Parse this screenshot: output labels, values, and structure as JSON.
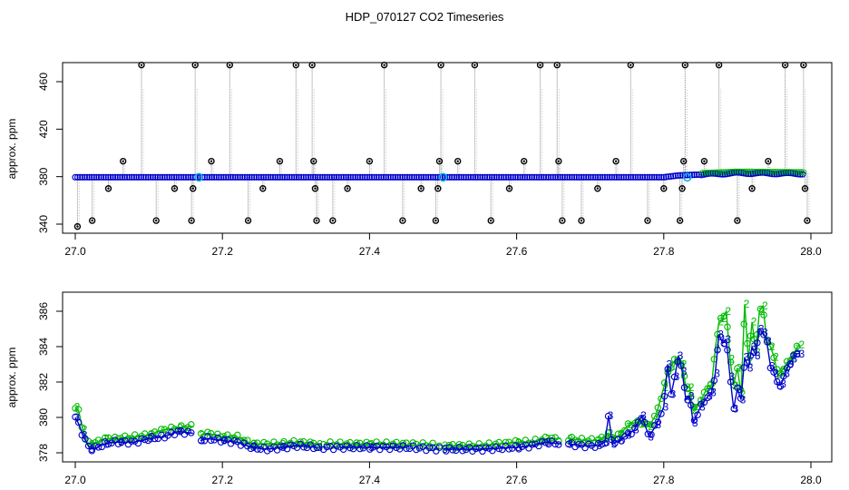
{
  "title": "HDP_070127  CO2 Timeseries",
  "colors": {
    "blue": "#0000cc",
    "green": "#00bb00",
    "cyan": "#00b8e0",
    "black": "#000000",
    "gray": "#888888"
  },
  "chart_data": [
    {
      "type": "scatter",
      "title": "HDP_070127  CO2 Timeseries",
      "xlabel": "",
      "ylabel": "approx. ppm",
      "xlim": [
        27.0,
        28.0
      ],
      "ylim": [
        338,
        478
      ],
      "xticks": [
        "27.0",
        "27.2",
        "27.4",
        "27.6",
        "27.8",
        "28.0"
      ],
      "yticks": [
        "340",
        "380",
        "420",
        "460"
      ],
      "xtick_values": [
        27.0,
        27.2,
        27.4,
        27.6,
        27.8,
        28.0
      ],
      "ytick_values": [
        340,
        380,
        420,
        460
      ],
      "grid": false,
      "baseline": [
        [
          27.0,
          379.5
        ],
        [
          27.8,
          379.5
        ],
        [
          27.82,
          381
        ],
        [
          27.86,
          382
        ],
        [
          27.9,
          383
        ],
        [
          27.99,
          382.5
        ]
      ],
      "spikes": [
        {
          "x": 27.003,
          "y": 338
        },
        {
          "x": 27.023,
          "y": 343
        },
        {
          "x": 27.045,
          "y": 370
        },
        {
          "x": 27.065,
          "y": 393
        },
        {
          "x": 27.09,
          "y": 474
        },
        {
          "x": 27.11,
          "y": 343
        },
        {
          "x": 27.135,
          "y": 370
        },
        {
          "x": 27.158,
          "y": 343
        },
        {
          "x": 27.16,
          "y": 370
        },
        {
          "x": 27.163,
          "y": 474
        },
        {
          "x": 27.185,
          "y": 393
        },
        {
          "x": 27.21,
          "y": 474
        },
        {
          "x": 27.235,
          "y": 343
        },
        {
          "x": 27.255,
          "y": 370
        },
        {
          "x": 27.278,
          "y": 393
        },
        {
          "x": 27.3,
          "y": 474
        },
        {
          "x": 27.322,
          "y": 474
        },
        {
          "x": 27.324,
          "y": 393
        },
        {
          "x": 27.326,
          "y": 370
        },
        {
          "x": 27.328,
          "y": 343
        },
        {
          "x": 27.35,
          "y": 343
        },
        {
          "x": 27.37,
          "y": 370
        },
        {
          "x": 27.4,
          "y": 393
        },
        {
          "x": 27.42,
          "y": 474
        },
        {
          "x": 27.445,
          "y": 343
        },
        {
          "x": 27.47,
          "y": 370
        },
        {
          "x": 27.49,
          "y": 343
        },
        {
          "x": 27.493,
          "y": 370
        },
        {
          "x": 27.495,
          "y": 393
        },
        {
          "x": 27.497,
          "y": 474
        },
        {
          "x": 27.52,
          "y": 393
        },
        {
          "x": 27.543,
          "y": 474
        },
        {
          "x": 27.565,
          "y": 343
        },
        {
          "x": 27.59,
          "y": 370
        },
        {
          "x": 27.61,
          "y": 393
        },
        {
          "x": 27.632,
          "y": 474
        },
        {
          "x": 27.655,
          "y": 474
        },
        {
          "x": 27.657,
          "y": 393
        },
        {
          "x": 27.662,
          "y": 343
        },
        {
          "x": 27.688,
          "y": 343
        },
        {
          "x": 27.71,
          "y": 370
        },
        {
          "x": 27.735,
          "y": 393
        },
        {
          "x": 27.755,
          "y": 474
        },
        {
          "x": 27.778,
          "y": 343
        },
        {
          "x": 27.8,
          "y": 370
        },
        {
          "x": 27.822,
          "y": 343
        },
        {
          "x": 27.825,
          "y": 370
        },
        {
          "x": 27.827,
          "y": 393
        },
        {
          "x": 27.829,
          "y": 474
        },
        {
          "x": 27.855,
          "y": 393
        },
        {
          "x": 27.875,
          "y": 474
        },
        {
          "x": 27.9,
          "y": 343
        },
        {
          "x": 27.92,
          "y": 370
        },
        {
          "x": 27.942,
          "y": 393
        },
        {
          "x": 27.965,
          "y": 474
        },
        {
          "x": 27.99,
          "y": 474
        },
        {
          "x": 27.992,
          "y": 370
        },
        {
          "x": 27.995,
          "y": 343
        }
      ],
      "highlights": [
        {
          "x": 27.168,
          "y": 379.5
        },
        {
          "x": 27.5,
          "y": 379.5
        },
        {
          "x": 27.832,
          "y": 379.5
        }
      ]
    },
    {
      "type": "line",
      "title": "",
      "xlabel": "",
      "ylabel": "approx. ppm",
      "xlim": [
        27.0,
        28.0
      ],
      "ylim": [
        377.7,
        387.3
      ],
      "xticks": [
        "27.0",
        "27.2",
        "27.4",
        "27.6",
        "27.8",
        "28.0"
      ],
      "yticks": [
        "378",
        "380",
        "382",
        "384",
        "386"
      ],
      "xtick_values": [
        27.0,
        27.2,
        27.4,
        27.6,
        27.8,
        28.0
      ],
      "ytick_values": [
        378,
        380,
        382,
        384,
        386
      ],
      "grid": false,
      "gaps": [
        [
          27.162,
          27.168
        ],
        [
          27.331,
          27.335
        ],
        [
          27.496,
          27.5
        ],
        [
          27.661,
          27.667
        ]
      ],
      "series": [
        {
          "marker": "3",
          "color": "#0000cc",
          "x": [
            27.0,
            27.005,
            27.01,
            27.015,
            27.02,
            27.03,
            27.04,
            27.05,
            27.06,
            27.08,
            27.1,
            27.12,
            27.14,
            27.16,
            27.17,
            27.18,
            27.2,
            27.22,
            27.24,
            27.26,
            27.28,
            27.3,
            27.33,
            27.36,
            27.4,
            27.45,
            27.5,
            27.55,
            27.6,
            27.62,
            27.64,
            27.66,
            27.67,
            27.69,
            27.71,
            27.72,
            27.725,
            27.73,
            27.74,
            27.75,
            27.76,
            27.77,
            27.78,
            27.79,
            27.8,
            27.805,
            27.81,
            27.815,
            27.82,
            27.825,
            27.83,
            27.835,
            27.84,
            27.85,
            27.86,
            27.865,
            27.87,
            27.875,
            27.88,
            27.885,
            27.89,
            27.895,
            27.9,
            27.905,
            27.91,
            27.915,
            27.92,
            27.925,
            27.93,
            27.935,
            27.94,
            27.945,
            27.95,
            27.955,
            27.96,
            27.965,
            27.97,
            27.975,
            27.98,
            27.985
          ],
          "y": [
            380.0,
            379.6,
            379.0,
            378.6,
            378.2,
            378.3,
            378.5,
            378.6,
            378.6,
            378.6,
            378.8,
            378.9,
            379.2,
            379.1,
            378.7,
            378.8,
            378.7,
            378.6,
            378.3,
            378.2,
            378.3,
            378.4,
            378.3,
            378.3,
            378.3,
            378.3,
            378.2,
            378.2,
            378.3,
            378.4,
            378.6,
            378.5,
            378.5,
            378.4,
            378.4,
            378.6,
            380.1,
            378.5,
            378.7,
            379.0,
            379.3,
            380.1,
            378.9,
            379.6,
            380.6,
            383.0,
            381.3,
            382.3,
            383.5,
            382.6,
            381.0,
            381.2,
            379.7,
            380.6,
            381.2,
            381.4,
            382.5,
            384.7,
            384.2,
            384.4,
            382.3,
            380.5,
            381.6,
            381.0,
            383.4,
            382.8,
            384.0,
            383.5,
            385.0,
            384.8,
            384.3,
            382.9,
            382.5,
            381.8,
            381.9,
            382.5,
            383.0,
            383.3,
            383.6,
            383.6
          ]
        },
        {
          "marker": "2",
          "color": "#00bb00",
          "x": [
            27.0,
            27.005,
            27.01,
            27.015,
            27.02,
            27.03,
            27.04,
            27.05,
            27.06,
            27.08,
            27.1,
            27.12,
            27.14,
            27.16,
            27.17,
            27.18,
            27.2,
            27.22,
            27.24,
            27.26,
            27.28,
            27.3,
            27.33,
            27.36,
            27.4,
            27.45,
            27.5,
            27.55,
            27.6,
            27.62,
            27.64,
            27.66,
            27.67,
            27.69,
            27.71,
            27.72,
            27.725,
            27.73,
            27.74,
            27.75,
            27.76,
            27.77,
            27.78,
            27.79,
            27.8,
            27.805,
            27.81,
            27.815,
            27.82,
            27.825,
            27.83,
            27.835,
            27.84,
            27.85,
            27.86,
            27.865,
            27.87,
            27.875,
            27.88,
            27.885,
            27.89,
            27.895,
            27.9,
            27.905,
            27.91,
            27.915,
            27.92,
            27.925,
            27.93,
            27.935,
            27.94,
            27.945,
            27.95,
            27.955,
            27.96,
            27.965,
            27.97,
            27.975,
            27.98,
            27.985
          ],
          "y": [
            380.6,
            380.3,
            379.3,
            378.6,
            378.5,
            378.6,
            378.8,
            378.8,
            378.8,
            378.9,
            379.0,
            379.3,
            379.4,
            379.5,
            379.0,
            379.1,
            378.9,
            378.9,
            378.5,
            378.5,
            378.5,
            378.6,
            378.5,
            378.5,
            378.5,
            378.5,
            378.4,
            378.4,
            378.6,
            378.6,
            378.8,
            378.8,
            378.8,
            378.7,
            378.7,
            378.9,
            379.1,
            378.8,
            379.0,
            379.5,
            379.7,
            379.7,
            379.5,
            380.2,
            381.7,
            382.5,
            382.9,
            383.2,
            383.3,
            383.0,
            381.7,
            381.7,
            380.4,
            380.9,
            381.8,
            381.8,
            383.9,
            385.4,
            385.6,
            386.0,
            383.3,
            381.8,
            382.8,
            381.3,
            386.4,
            383.2,
            385.4,
            383.7,
            386.0,
            386.3,
            384.3,
            384.0,
            383.4,
            382.4,
            382.6,
            382.9,
            383.2,
            383.4,
            383.9,
            384.1
          ]
        }
      ]
    }
  ]
}
